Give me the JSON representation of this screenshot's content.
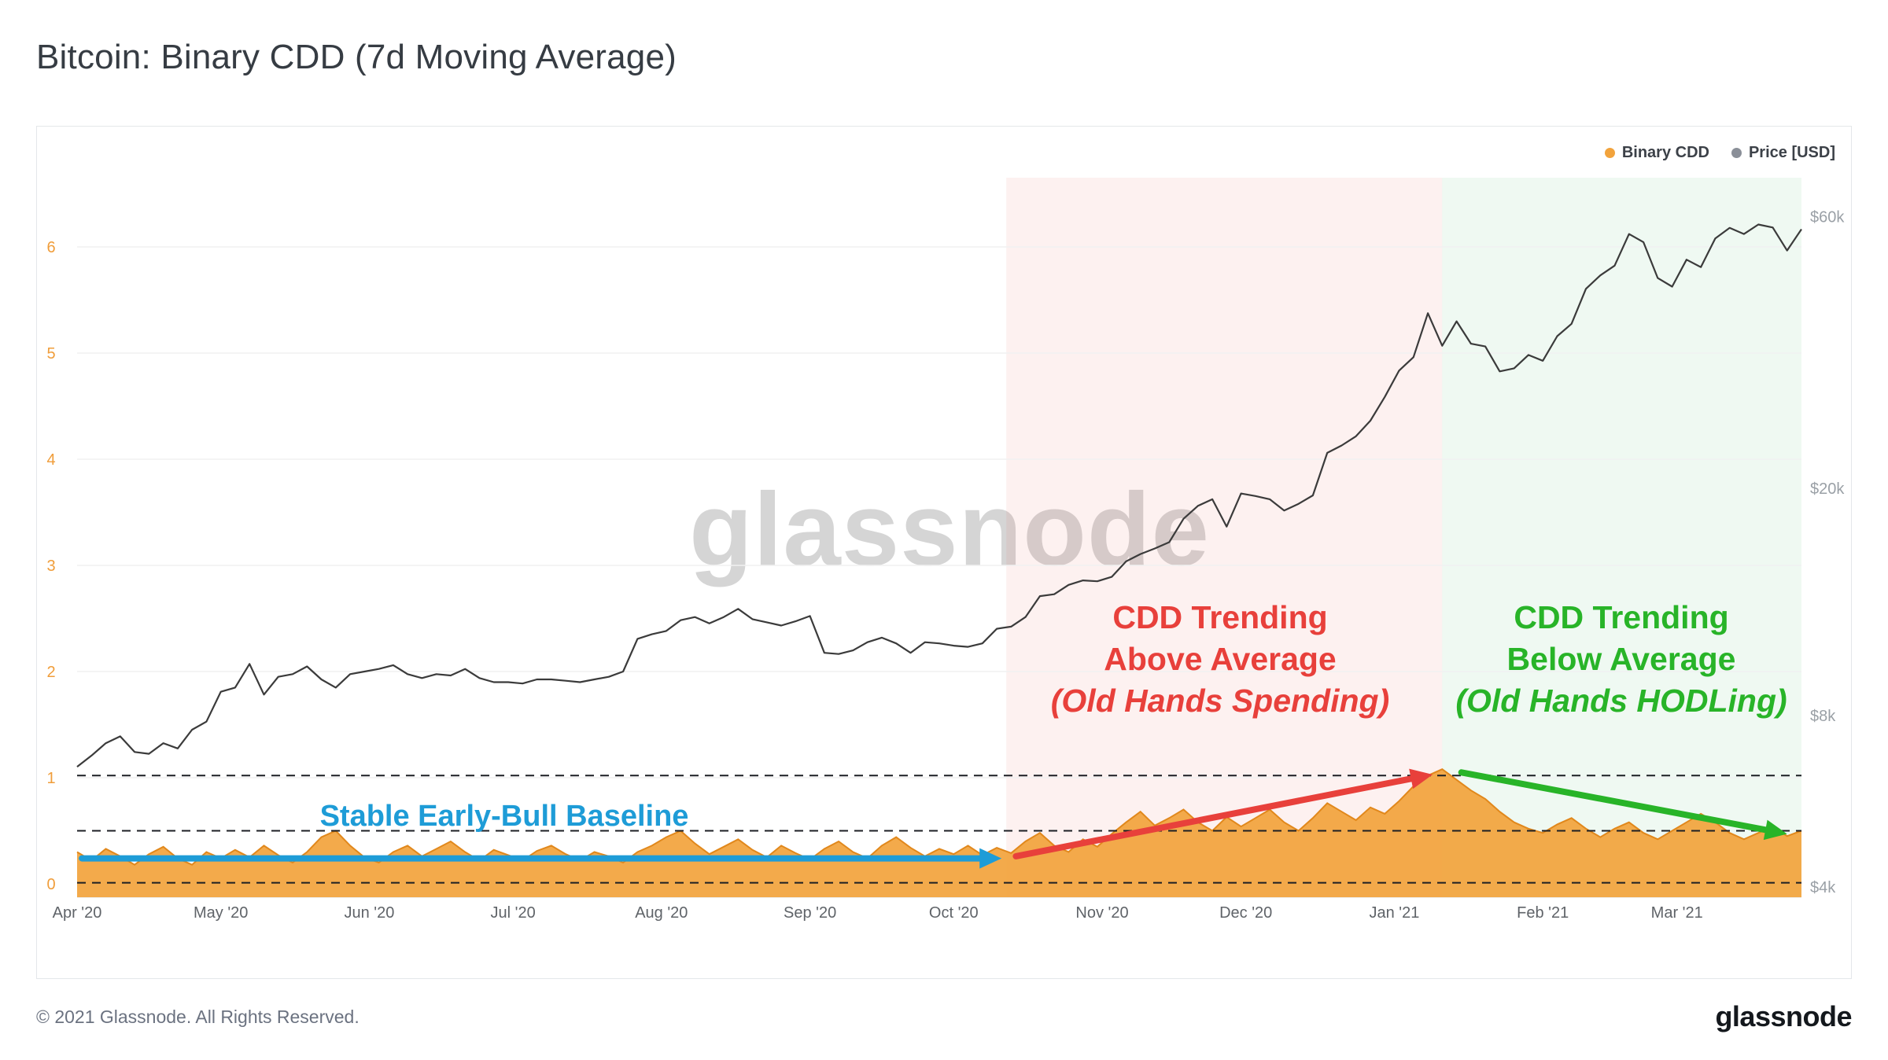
{
  "page": {
    "title": "Bitcoin: Binary CDD (7d Moving Average)",
    "watermark": "glassnode",
    "footer_copyright": "© 2021 Glassnode. All Rights Reserved.",
    "brand_logo": "glassnode"
  },
  "legend": [
    {
      "label": "Binary CDD",
      "color": "#f2a33c"
    },
    {
      "label": "Price [USD]",
      "color": "#8a8f98"
    }
  ],
  "chart_data": {
    "type": "mixed",
    "title": "Bitcoin: Binary CDD (7d Moving Average)",
    "x_axis": {
      "unit": "days since 2020-04-01",
      "max_day": 360,
      "sample_step_days": 3,
      "tick_days": [
        0,
        30,
        61,
        91,
        122,
        153,
        183,
        214,
        244,
        275,
        306,
        334
      ],
      "tick_labels": [
        "Apr '20",
        "May '20",
        "Jun '20",
        "Jul '20",
        "Aug '20",
        "Sep '20",
        "Oct '20",
        "Nov '20",
        "Dec '20",
        "Jan '21",
        "Feb '21",
        "Mar '21"
      ]
    },
    "left_axis": {
      "name": "Binary CDD",
      "scale": "linear",
      "ticks": [
        0,
        1,
        2,
        3,
        4,
        5,
        6
      ],
      "color": "#f09d3a"
    },
    "right_axis": {
      "name": "Price [USD]",
      "scale": "log",
      "color": "#9aa0a6",
      "ticks": [
        {
          "value": 4000,
          "label": "$4k"
        },
        {
          "value": 8000,
          "label": "$8k"
        },
        {
          "value": 20000,
          "label": "$20k"
        },
        {
          "value": 60000,
          "label": "$60k"
        }
      ]
    },
    "series": [
      {
        "name": "Binary CDD",
        "type": "area",
        "axis": "left",
        "color": "#f2a33c",
        "stroke": "#e1881c",
        "values": [
          0.3,
          0.22,
          0.33,
          0.26,
          0.18,
          0.28,
          0.35,
          0.24,
          0.18,
          0.3,
          0.24,
          0.32,
          0.25,
          0.36,
          0.27,
          0.2,
          0.3,
          0.44,
          0.5,
          0.36,
          0.25,
          0.2,
          0.3,
          0.36,
          0.26,
          0.33,
          0.4,
          0.3,
          0.22,
          0.32,
          0.27,
          0.22,
          0.31,
          0.36,
          0.28,
          0.22,
          0.3,
          0.26,
          0.2,
          0.3,
          0.36,
          0.44,
          0.5,
          0.38,
          0.28,
          0.35,
          0.42,
          0.32,
          0.25,
          0.36,
          0.29,
          0.23,
          0.33,
          0.4,
          0.3,
          0.24,
          0.36,
          0.44,
          0.34,
          0.26,
          0.33,
          0.28,
          0.36,
          0.27,
          0.34,
          0.29,
          0.4,
          0.48,
          0.36,
          0.3,
          0.42,
          0.35,
          0.47,
          0.58,
          0.68,
          0.55,
          0.62,
          0.7,
          0.58,
          0.5,
          0.63,
          0.54,
          0.62,
          0.7,
          0.58,
          0.5,
          0.62,
          0.76,
          0.68,
          0.6,
          0.72,
          0.66,
          0.78,
          0.92,
          1.02,
          1.08,
          0.98,
          0.88,
          0.8,
          0.68,
          0.58,
          0.52,
          0.48,
          0.56,
          0.62,
          0.52,
          0.44,
          0.52,
          0.58,
          0.48,
          0.42,
          0.5,
          0.58,
          0.66,
          0.58,
          0.48,
          0.42,
          0.48,
          0.54,
          0.45,
          0.5
        ]
      },
      {
        "name": "Price [USD]",
        "type": "line",
        "axis": "right",
        "color": "#3b3b3b",
        "values": [
          6500,
          6800,
          7150,
          7350,
          6900,
          6850,
          7150,
          7000,
          7550,
          7800,
          8800,
          8950,
          9850,
          8700,
          9350,
          9450,
          9750,
          9250,
          8950,
          9450,
          9550,
          9650,
          9800,
          9450,
          9300,
          9450,
          9400,
          9650,
          9300,
          9150,
          9150,
          9100,
          9250,
          9250,
          9200,
          9150,
          9250,
          9350,
          9550,
          10900,
          11100,
          11250,
          11750,
          11900,
          11600,
          11900,
          12300,
          11800,
          11650,
          11500,
          11700,
          11950,
          10300,
          10250,
          10400,
          10750,
          10950,
          10700,
          10300,
          10750,
          10700,
          10600,
          10550,
          10700,
          11350,
          11450,
          11900,
          12950,
          13050,
          13550,
          13800,
          13750,
          14000,
          14900,
          15350,
          15700,
          16100,
          17700,
          18650,
          19150,
          17150,
          19600,
          19400,
          19150,
          18300,
          18800,
          19450,
          23100,
          23800,
          24700,
          26300,
          28950,
          32200,
          34000,
          40600,
          35600,
          39300,
          35900,
          35500,
          32100,
          32500,
          34300,
          33500,
          37000,
          38900,
          44800,
          47300,
          49200,
          55900,
          54100,
          46800,
          45200,
          50400,
          48900,
          54900,
          57300,
          55900,
          58100,
          57400,
          52300,
          57000
        ]
      }
    ],
    "dashed_guide_levels": [
      1.02,
      0.5,
      0.01
    ],
    "regions": [
      {
        "label": "CDD above average period",
        "from_day": 194,
        "to_day": 285,
        "fill": "rgba(229,72,66,0.08)"
      },
      {
        "label": "CDD below average period",
        "from_day": 285,
        "to_day": 360,
        "fill": "rgba(52,183,83,0.08)"
      }
    ],
    "annotations": [
      {
        "id": "baseline",
        "lines": [
          "Stable Early-Bull Baseline"
        ],
        "color": "#1e9cd7",
        "arrow": {
          "from_day": 1,
          "from_cdd": 0.24,
          "to_day": 193,
          "to_cdd": 0.24
        }
      },
      {
        "id": "above",
        "lines": [
          "CDD Trending",
          "Above Average",
          "(Old Hands Spending)"
        ],
        "color": "#e8403b",
        "arrow": {
          "from_day": 196,
          "from_cdd": 0.26,
          "to_day": 283,
          "to_cdd": 1.03
        }
      },
      {
        "id": "below",
        "lines": [
          "CDD Trending",
          "Below Average",
          "(Old Hands HODLing)"
        ],
        "color": "#28b428",
        "arrow": {
          "from_day": 289,
          "from_cdd": 1.05,
          "to_day": 357,
          "to_cdd": 0.47
        }
      }
    ]
  }
}
